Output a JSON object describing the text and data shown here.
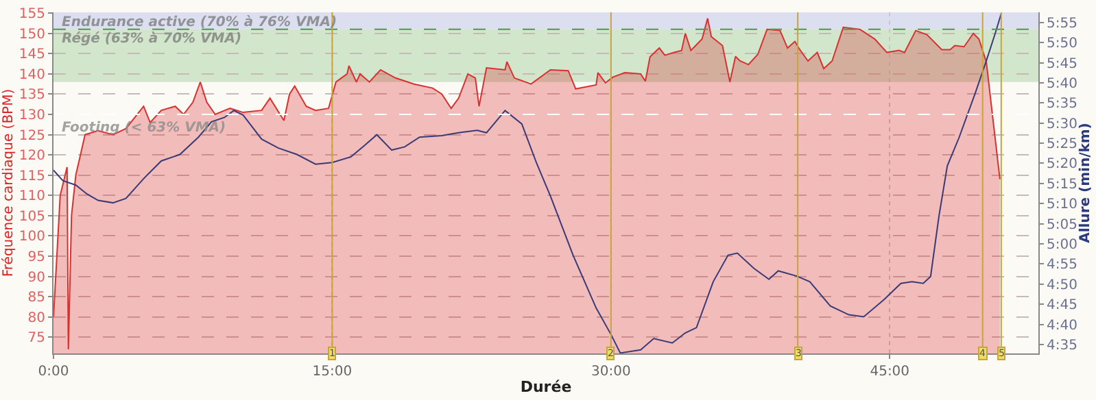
{
  "chart_data": {
    "type": "area",
    "xlabel": "Durée",
    "ylabel": "Fréquence cardiaque (BPM)",
    "y2label": "Allure (min/km)",
    "xlim": [
      0,
      53
    ],
    "xticks": [
      {
        "value": 0,
        "label": "0:00"
      },
      {
        "value": 15,
        "label": "15:00"
      },
      {
        "value": 30,
        "label": "30:00"
      },
      {
        "value": 45,
        "label": "45:00"
      }
    ],
    "ylim": [
      71,
      155.2
    ],
    "yticks": [
      75,
      80,
      85,
      90,
      95,
      100,
      105,
      110,
      115,
      120,
      125,
      130,
      135,
      140,
      145,
      150,
      155
    ],
    "y2lim": [
      272.8,
      357.5
    ],
    "y2ticks": [
      {
        "value": 275,
        "label": "4:35"
      },
      {
        "value": 280,
        "label": "4:40"
      },
      {
        "value": 285,
        "label": "4:45"
      },
      {
        "value": 290,
        "label": "4:50"
      },
      {
        "value": 295,
        "label": "4:55"
      },
      {
        "value": 300,
        "label": "5:00"
      },
      {
        "value": 305,
        "label": "5:05"
      },
      {
        "value": 310,
        "label": "5:10"
      },
      {
        "value": 315,
        "label": "5:15"
      },
      {
        "value": 320,
        "label": "5:20"
      },
      {
        "value": 325,
        "label": "5:25"
      },
      {
        "value": 330,
        "label": "5:30"
      },
      {
        "value": 335,
        "label": "5:35"
      },
      {
        "value": 340,
        "label": "5:40"
      },
      {
        "value": 345,
        "label": "5:45"
      },
      {
        "value": 350,
        "label": "5:50"
      },
      {
        "value": 355,
        "label": "5:55"
      }
    ],
    "grid": true,
    "series": [
      {
        "color": "#d93030",
        "x": [
          0,
          0.36,
          0.73,
          0.8,
          0.97,
          1.2,
          1.7,
          2.4,
          3.2,
          3.9,
          4.85,
          5.2,
          5.8,
          6.55,
          7.0,
          7.5,
          7.9,
          8.25,
          8.7,
          9.5,
          10.2,
          11.2,
          11.65,
          12.4,
          12.7,
          12.98,
          13.6,
          14.1,
          14.8,
          15.2,
          15.8,
          15.9,
          16.3,
          16.5,
          17.0,
          17.6,
          18.4,
          19.4,
          20.4,
          20.9,
          21.4,
          21.8,
          22.3,
          22.7,
          22.9,
          23.3,
          24.3,
          24.4,
          24.8,
          25.7,
          26.74,
          27.7,
          28.1,
          29.2,
          29.3,
          29.7,
          30.1,
          30.75,
          31.6,
          31.85,
          32.1,
          32.6,
          32.9,
          33.4,
          33.8,
          34.0,
          34.3,
          34.9,
          35.2,
          35.4,
          36.0,
          36.4,
          36.7,
          36.95,
          37.4,
          37.9,
          38.4,
          39.1,
          39.5,
          39.9,
          40.1,
          40.6,
          41.1,
          41.45,
          41.9,
          42.5,
          43.4,
          44.2,
          44.85,
          45.5,
          45.8,
          46.4,
          47.0,
          47.8,
          48.25,
          48.5,
          49.0,
          49.5,
          49.8,
          50.2,
          50.56,
          50.93
        ],
        "values": [
          80,
          110,
          117,
          72,
          105,
          115,
          125,
          126,
          125,
          126.5,
          132,
          128,
          131,
          132,
          130,
          133,
          138,
          133,
          130,
          131.5,
          130.5,
          131,
          134,
          128.5,
          135,
          137,
          132,
          131,
          131.5,
          138,
          140,
          142,
          138,
          140,
          138,
          141,
          139,
          137.5,
          136.5,
          135,
          131.5,
          134,
          140,
          139,
          132,
          141.5,
          141,
          143,
          139,
          137.5,
          141,
          140.8,
          136.3,
          137.3,
          140.3,
          137.8,
          139.2,
          140.3,
          140,
          138.2,
          144.2,
          146.4,
          144.6,
          145.3,
          145.8,
          150,
          145.8,
          148.6,
          153.7,
          149.2,
          147,
          138,
          144.3,
          143.2,
          142.3,
          144.8,
          151,
          150.7,
          146.4,
          148,
          146.4,
          143.2,
          145.3,
          141.3,
          143.2,
          151.5,
          151,
          148.6,
          145.3,
          145.8,
          145.3,
          150.7,
          149.7,
          146,
          146,
          147,
          146.7,
          150,
          148.6,
          142.9,
          128.6,
          114
        ]
      },
      {
        "type": "line",
        "axis": "y2",
        "color": "#3a3a78",
        "x": [
          0,
          0.5,
          1.2,
          1.8,
          2.4,
          3.2,
          3.9,
          4.85,
          5.8,
          6.8,
          7.8,
          8.5,
          9.2,
          9.7,
          10.2,
          11.2,
          12.1,
          13.1,
          14.1,
          15.0,
          16.0,
          16.7,
          17.4,
          18.2,
          18.9,
          19.7,
          20.9,
          21.8,
          22.8,
          23.3,
          24.3,
          25.2,
          26.0,
          26.74,
          27.96,
          29.2,
          30.0,
          30.5,
          31.6,
          32.3,
          33.3,
          34.0,
          34.6,
          35.5,
          36.3,
          36.8,
          37.7,
          38.5,
          39.0,
          40.0,
          40.7,
          41.8,
          42.8,
          43.6,
          44.7,
          45.6,
          46.2,
          46.8,
          47.2,
          47.65,
          48.1,
          48.74,
          49.6,
          50.2,
          50.7,
          51.0
        ],
        "values": [
          318.3,
          315.7,
          314.6,
          312.4,
          310.8,
          310.2,
          311.3,
          316.2,
          320.6,
          322.2,
          326.5,
          330.3,
          331.4,
          333.1,
          332,
          326,
          323.8,
          322.2,
          319.8,
          320.2,
          321.6,
          324.3,
          327.1,
          323.3,
          324.1,
          326.5,
          326.9,
          327.6,
          328.2,
          327.6,
          333.1,
          329.8,
          320,
          311.9,
          297.2,
          284.1,
          277.5,
          272.9,
          273.7,
          276.5,
          275.4,
          277.9,
          279.2,
          290.6,
          297.2,
          297.7,
          293.9,
          291.2,
          293.3,
          292,
          290.6,
          284.6,
          282.4,
          281.9,
          286.2,
          290.2,
          290.6,
          290.2,
          291.9,
          306.9,
          319.4,
          326.5,
          337.4,
          345.5,
          352.6,
          357.2
        ]
      }
    ],
    "bands": [
      {
        "axis": "y",
        "from": 151,
        "to": 155.2,
        "label": "Endurance active (70% à 76% VMA)",
        "color": "#dcdff0"
      },
      {
        "axis": "y",
        "from": 138,
        "to": 151,
        "label": "Régé (63% à 70% VMA)",
        "color": "#d2e6cc"
      }
    ],
    "annotations": [
      {
        "text": "1",
        "x": 15.0,
        "y": 71
      },
      {
        "text": "2",
        "x": 30.0,
        "y": 71
      },
      {
        "text": "3",
        "x": 40.05,
        "y": 71
      },
      {
        "text": "4",
        "x": 50.0,
        "y": 71
      },
      {
        "text": "5",
        "x": 51.0,
        "y": 71
      }
    ],
    "ref_lines": [
      {
        "axis": "y",
        "value": 151,
        "color": "#4e9a48",
        "line_style": "dashed"
      },
      {
        "axis": "y",
        "value": 130,
        "label": "Footing (< 63% VMA)",
        "color": "#ffffff",
        "line_style": "dashed"
      },
      {
        "axis": "x",
        "value": 15.0,
        "color": "#c9a43c"
      },
      {
        "axis": "x",
        "value": 30.0,
        "color": "#c9a43c"
      },
      {
        "axis": "x",
        "value": 40.05,
        "color": "#c9a43c"
      },
      {
        "axis": "x",
        "value": 50.0,
        "color": "#c9a43c"
      },
      {
        "axis": "x",
        "value": 51.0,
        "color": "#c9a43c"
      }
    ]
  }
}
